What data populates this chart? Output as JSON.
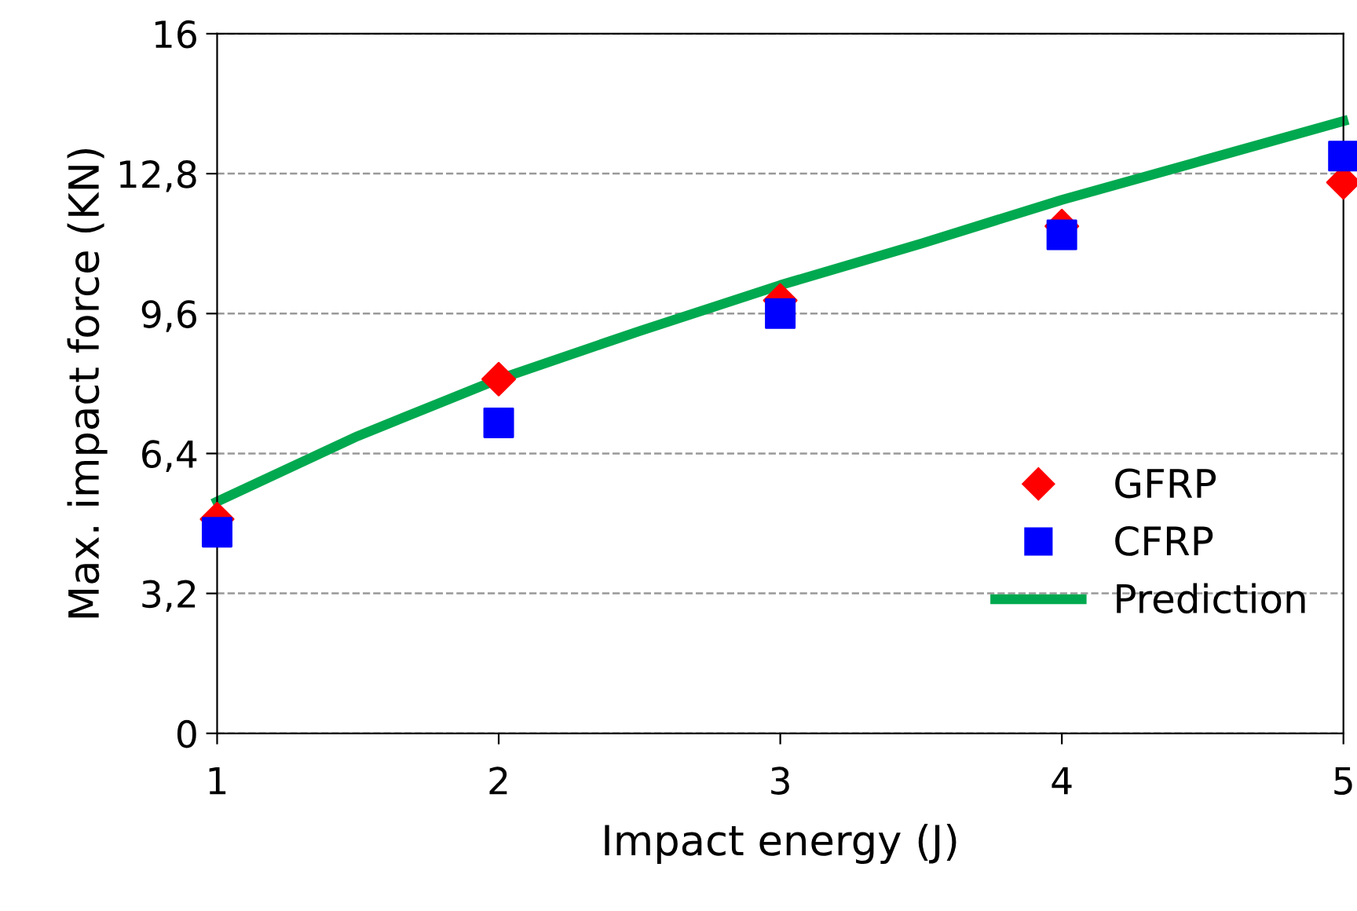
{
  "chart_data": {
    "type": "scatter",
    "xlabel": "Impact energy (J)",
    "ylabel": "Max. impact force (KN)",
    "series": [
      {
        "name": "GFRP",
        "marker": "diamond",
        "color": "#ff0000",
        "x": [
          1,
          2,
          3,
          4,
          5
        ],
        "values": [
          4.9,
          8.1,
          9.9,
          11.6,
          12.6
        ]
      },
      {
        "name": "CFRP",
        "marker": "square",
        "color": "#0000ff",
        "x": [
          1,
          2,
          3,
          4,
          5
        ],
        "values": [
          4.6,
          7.1,
          9.6,
          11.4,
          13.2
        ]
      },
      {
        "name": "Prediction",
        "type": "line",
        "marker": "none",
        "color": "#00a94f",
        "x": [
          1,
          1.5,
          2,
          2.5,
          3,
          3.5,
          4,
          4.5,
          5
        ],
        "values": [
          5.3,
          6.8,
          8.1,
          9.2,
          10.25,
          11.2,
          12.2,
          13.1,
          14.0
        ]
      }
    ],
    "xlim": [
      1,
      5
    ],
    "xticks": [
      1,
      2,
      3,
      4,
      5
    ],
    "ylim": [
      0,
      16
    ],
    "yticks": [
      0,
      {
        "value": 3.2,
        "label": "3,2"
      },
      {
        "value": 6.4,
        "label": "6,4"
      },
      {
        "value": 9.6,
        "label": "9,6"
      },
      {
        "value": 12.8,
        "label": "12,8"
      },
      16
    ],
    "grid": "y",
    "legend": "right"
  }
}
